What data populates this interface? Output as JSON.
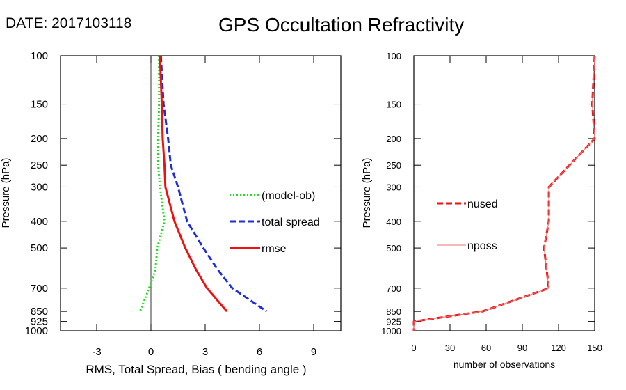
{
  "header": {
    "date_label": "DATE: 2017103118",
    "title": "GPS Occultation Refractivity"
  },
  "chart_data": [
    {
      "type": "line",
      "xlabel": "RMS, Total Spread, Bias ( bending angle )",
      "ylabel": "Pressure (hPa)",
      "xlim": [
        -5,
        10.5
      ],
      "ylim": [
        1000,
        100
      ],
      "yscale": "log",
      "xticks": [
        -3,
        0,
        3,
        6,
        9
      ],
      "yticks": [
        100,
        150,
        200,
        250,
        300,
        400,
        500,
        700,
        850,
        925,
        1000
      ],
      "zero_line": true,
      "legend_position": "center-right",
      "series": [
        {
          "name": "(model-ob)",
          "color": "#22dd22",
          "style": "dotted",
          "points": [
            [
              0.45,
              100
            ],
            [
              0.45,
              150
            ],
            [
              0.4,
              200
            ],
            [
              0.4,
              250
            ],
            [
              0.5,
              300
            ],
            [
              0.75,
              400
            ],
            [
              0.35,
              500
            ],
            [
              0.25,
              600
            ],
            [
              -0.1,
              700
            ],
            [
              -0.6,
              850
            ]
          ]
        },
        {
          "name": "total spread",
          "color": "#1f2fd6",
          "style": "dashed",
          "points": [
            [
              0.55,
              100
            ],
            [
              0.7,
              150
            ],
            [
              0.95,
              200
            ],
            [
              1.1,
              250
            ],
            [
              1.5,
              300
            ],
            [
              2.0,
              400
            ],
            [
              2.9,
              500
            ],
            [
              3.7,
              600
            ],
            [
              4.5,
              700
            ],
            [
              6.4,
              850
            ]
          ]
        },
        {
          "name": "rmse",
          "color": "#ee1111",
          "style": "solid",
          "points": [
            [
              0.5,
              100
            ],
            [
              0.6,
              150
            ],
            [
              0.65,
              200
            ],
            [
              0.75,
              250
            ],
            [
              0.8,
              300
            ],
            [
              1.3,
              400
            ],
            [
              1.9,
              500
            ],
            [
              2.5,
              600
            ],
            [
              3.1,
              700
            ],
            [
              4.2,
              850
            ]
          ]
        }
      ]
    },
    {
      "type": "line",
      "xlabel": "number of observations",
      "ylabel": "Pressure (hPa)",
      "xlim": [
        0,
        150
      ],
      "ylim": [
        1000,
        100
      ],
      "yscale": "log",
      "xticks": [
        0,
        30,
        60,
        90,
        120,
        150
      ],
      "yticks": [
        100,
        150,
        200,
        250,
        300,
        400,
        500,
        700,
        850,
        925,
        1000
      ],
      "legend_position": "center-left",
      "series": [
        {
          "name": "nused",
          "color": "#ee1111",
          "style": "dashed",
          "points": [
            [
              150,
              100
            ],
            [
              148,
              150
            ],
            [
              150,
              200
            ],
            [
              112,
              300
            ],
            [
              112,
              400
            ],
            [
              108,
              500
            ],
            [
              112,
              700
            ],
            [
              57,
              850
            ],
            [
              0,
              925
            ],
            [
              0,
              1000
            ]
          ]
        },
        {
          "name": "nposs",
          "color": "#f07070",
          "style": "thin",
          "points": [
            [
              150,
              100
            ],
            [
              148,
              150
            ],
            [
              150,
              200
            ],
            [
              112,
              300
            ],
            [
              112,
              400
            ],
            [
              108,
              500
            ],
            [
              112,
              700
            ],
            [
              57,
              850
            ],
            [
              0,
              925
            ],
            [
              0,
              1000
            ]
          ]
        }
      ]
    }
  ]
}
